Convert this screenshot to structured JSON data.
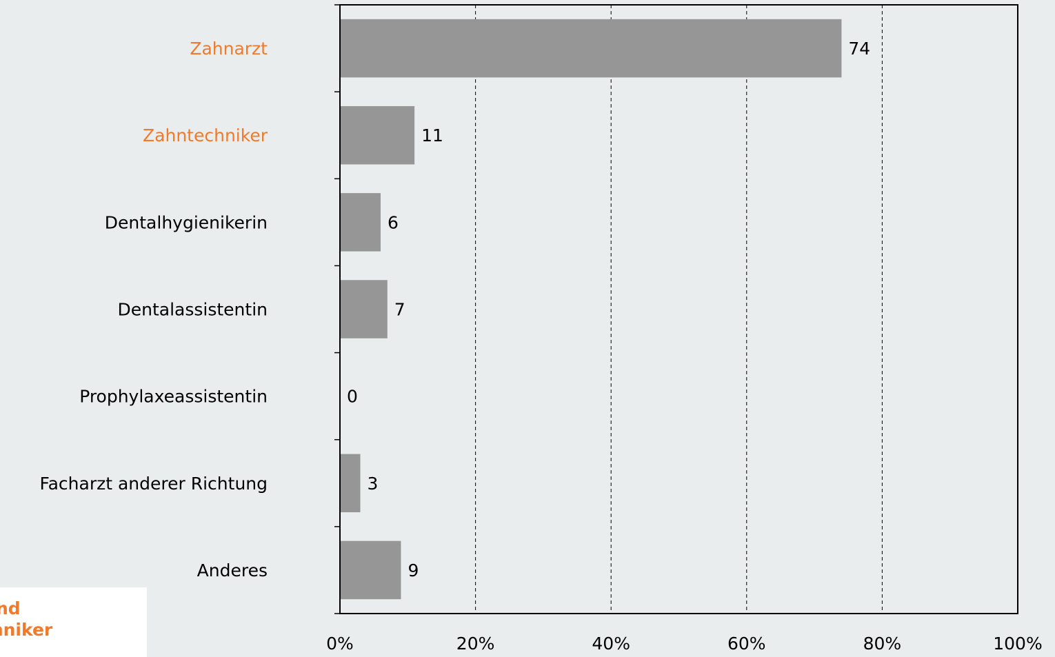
{
  "chart_data": {
    "type": "hbar",
    "categories": [
      "Zahnarzt",
      "Zahntechniker",
      "Dentalhygienikerin",
      "Dentalassistentin",
      "Prophylaxeassistentin",
      "Facharzt anderer Richtung",
      "Anderes"
    ],
    "label_colors": [
      "#f07a2a",
      "#f07a2a",
      "#000000",
      "#000000",
      "#000000",
      "#000000",
      "#000000"
    ],
    "values": [
      74,
      11,
      6,
      7,
      0,
      3,
      9
    ],
    "color": "#969696",
    "xlim": [
      0,
      100
    ],
    "xticks": [
      {
        "value": 0,
        "label": "0%"
      },
      {
        "value": 20,
        "label": "20%"
      },
      {
        "value": 40,
        "label": "40%"
      },
      {
        "value": 60,
        "label": "60%"
      },
      {
        "value": 80,
        "label": "80%"
      },
      {
        "value": 100,
        "label": "100%"
      }
    ],
    "grid": true,
    "legend_fragment": [
      "nd",
      "chniker"
    ]
  }
}
